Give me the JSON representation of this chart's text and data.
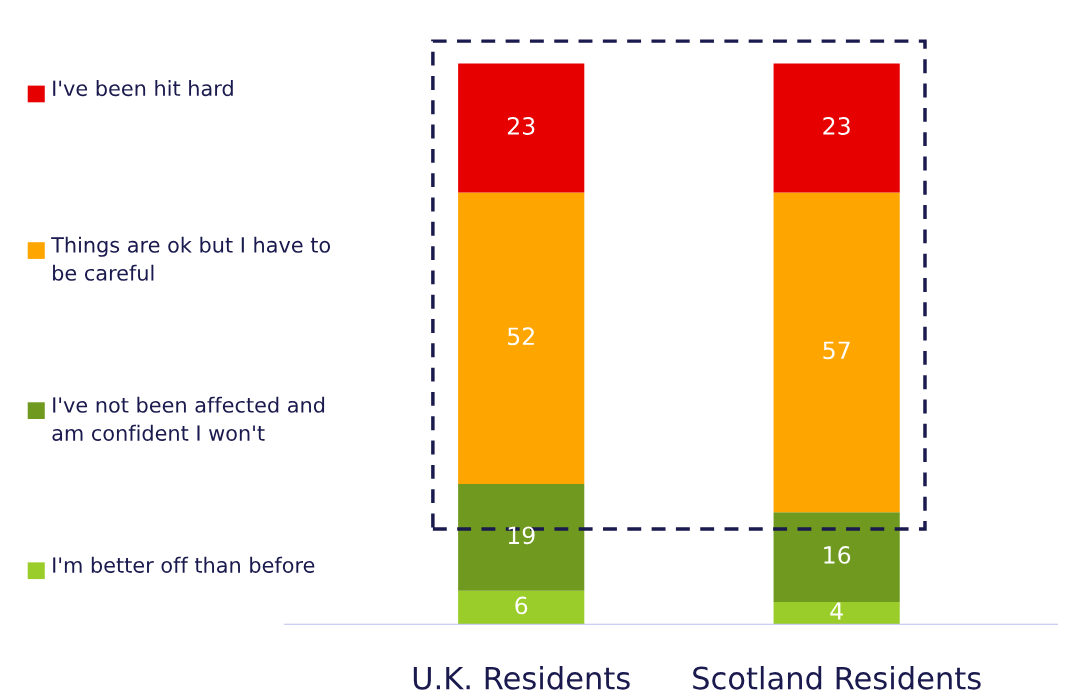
{
  "chart_data": {
    "type": "bar",
    "stacked": true,
    "data_labels": true,
    "legend": "left",
    "grid": false,
    "tick_labels": "x",
    "categories": [
      "U.K. Residents",
      "Scotland Residents"
    ],
    "series": [
      {
        "name": "I'm better off than before",
        "color": "#9acd2a",
        "values": [
          6,
          4
        ]
      },
      {
        "name": "I've not been affected and am confident I won't",
        "color": "#6f9a1f",
        "values": [
          19,
          16
        ]
      },
      {
        "name": "Things are ok but I have to be careful",
        "color": "#ffa500",
        "values": [
          52,
          57
        ]
      },
      {
        "name": "I've been hit hard",
        "color": "#e60000",
        "values": [
          23,
          23
        ]
      }
    ]
  }
}
